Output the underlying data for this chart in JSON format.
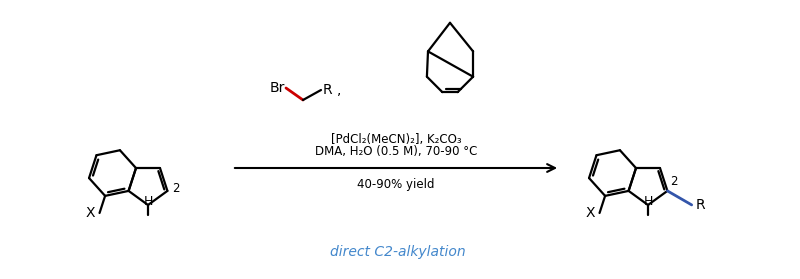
{
  "bg_color": "#ffffff",
  "text_color": "#000000",
  "red_color": "#cc0000",
  "blue_color": "#4488cc",
  "dark_blue_color": "#3355aa",
  "line_width": 1.6,
  "arrow_label1": "[PdCl₂(MeCN)₂], K₂CO₃",
  "arrow_label2": "DMA, H₂O (0.5 M), 70-90 °C",
  "arrow_label3": "40-90% yield",
  "bottom_label": "direct C2-alkylation",
  "font_size_main": 9.5,
  "font_size_label": 10,
  "font_size_subscript": 8
}
